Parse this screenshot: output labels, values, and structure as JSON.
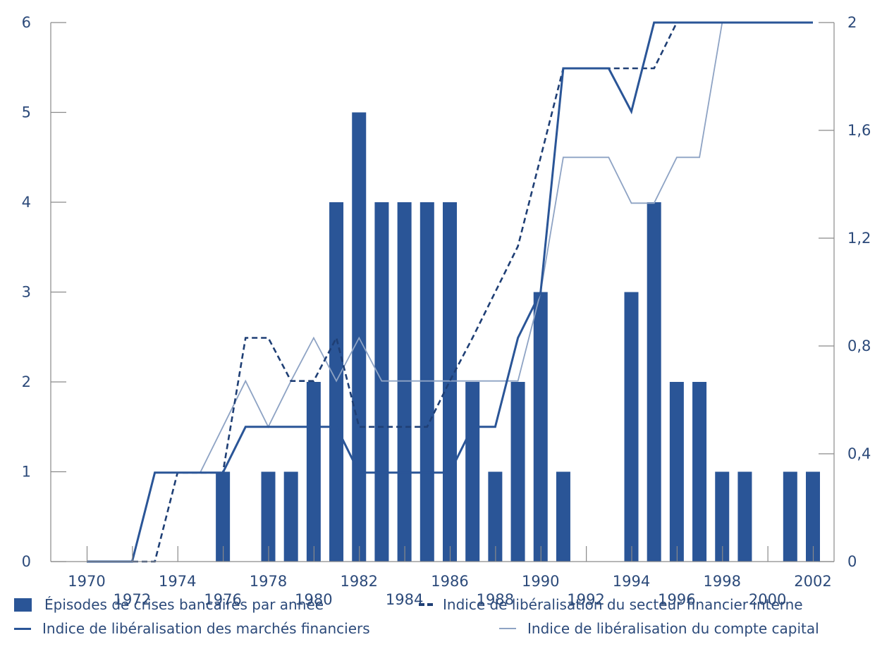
{
  "chart_data": {
    "type": "bar",
    "x": [
      1970,
      1971,
      1972,
      1973,
      1974,
      1975,
      1976,
      1977,
      1978,
      1979,
      1980,
      1981,
      1982,
      1983,
      1984,
      1985,
      1986,
      1987,
      1988,
      1989,
      1990,
      1991,
      1992,
      1993,
      1994,
      1995,
      1996,
      1997,
      1998,
      1999,
      2000,
      2001,
      2002
    ],
    "x_tick_labels": [
      "1970",
      "1972",
      "1974",
      "1976",
      "1978",
      "1980",
      "1982",
      "1984",
      "1986",
      "1988",
      "1990",
      "1992",
      "1994",
      "1996",
      "1998",
      "2000",
      "2002"
    ],
    "ylim_left": [
      0,
      6
    ],
    "yticks_left": [
      "0",
      "1",
      "2",
      "3",
      "4",
      "5",
      "6"
    ],
    "ylim_right": [
      0,
      2
    ],
    "yticks_right": [
      "0",
      "0,4",
      "0,8",
      "1,2",
      "1,6",
      "2"
    ],
    "bars": {
      "name": "Épisodes de crises bancaires par année",
      "color": "#2a5597",
      "axis": "left",
      "values": [
        0,
        0,
        0,
        0,
        0,
        0,
        1,
        0,
        1,
        1,
        2,
        4,
        5,
        4,
        4,
        4,
        4,
        2,
        1,
        2,
        3,
        1,
        0,
        0,
        3,
        4,
        2,
        2,
        1,
        1,
        0,
        1,
        1
      ]
    },
    "series": [
      {
        "name": "Indice de libéralisation du secteur financier interne",
        "style": "dashed",
        "color": "#1f3f75",
        "axis": "right",
        "points": [
          [
            1970,
            0
          ],
          [
            1971,
            0
          ],
          [
            1972,
            0
          ],
          [
            1973,
            0
          ],
          [
            1974,
            0.33
          ],
          [
            1975,
            0.33
          ],
          [
            1976,
            0.33
          ],
          [
            1977,
            0.83
          ],
          [
            1978,
            0.83
          ],
          [
            1979,
            0.67
          ],
          [
            1980,
            0.67
          ],
          [
            1981,
            0.83
          ],
          [
            1982,
            0.5
          ],
          [
            1983,
            0.5
          ],
          [
            1984,
            0.5
          ],
          [
            1985,
            0.5
          ],
          [
            1986,
            0.67
          ],
          [
            1987,
            0.83
          ],
          [
            1988,
            1.0
          ],
          [
            1989,
            1.17
          ],
          [
            1990,
            1.5
          ],
          [
            1991,
            1.83
          ],
          [
            1992,
            1.83
          ],
          [
            1993,
            1.83
          ],
          [
            1994,
            1.83
          ],
          [
            1995,
            1.83
          ],
          [
            1996,
            2.0
          ],
          [
            1997,
            2.0
          ],
          [
            1998,
            2.0
          ],
          [
            1999,
            2.0
          ],
          [
            2000,
            2.0
          ],
          [
            2001,
            2.0
          ],
          [
            2002,
            2.0
          ]
        ]
      },
      {
        "name": "Indice de libéralisation des marchés financiers",
        "style": "solid",
        "color": "#2a5597",
        "axis": "right",
        "points": [
          [
            1970,
            0
          ],
          [
            1971,
            0
          ],
          [
            1972,
            0
          ],
          [
            1973,
            0.33
          ],
          [
            1974,
            0.33
          ],
          [
            1975,
            0.33
          ],
          [
            1976,
            0.33
          ],
          [
            1977,
            0.5
          ],
          [
            1978,
            0.5
          ],
          [
            1979,
            0.5
          ],
          [
            1980,
            0.5
          ],
          [
            1981,
            0.5
          ],
          [
            1982,
            0.33
          ],
          [
            1983,
            0.33
          ],
          [
            1984,
            0.33
          ],
          [
            1985,
            0.33
          ],
          [
            1986,
            0.33
          ],
          [
            1987,
            0.5
          ],
          [
            1988,
            0.5
          ],
          [
            1989,
            0.83
          ],
          [
            1990,
            1.0
          ],
          [
            1991,
            1.83
          ],
          [
            1992,
            1.83
          ],
          [
            1993,
            1.83
          ],
          [
            1994,
            1.67
          ],
          [
            1995,
            2.0
          ],
          [
            1996,
            2.0
          ],
          [
            1997,
            2.0
          ],
          [
            1998,
            2.0
          ],
          [
            1999,
            2.0
          ],
          [
            2000,
            2.0
          ],
          [
            2001,
            2.0
          ],
          [
            2002,
            2.0
          ]
        ]
      },
      {
        "name": "Indice de libéralisation du compte capital",
        "style": "thin",
        "color": "#8ea3c4",
        "axis": "right",
        "points": [
          [
            1970,
            0
          ],
          [
            1971,
            0
          ],
          [
            1972,
            0
          ],
          [
            1973,
            0.33
          ],
          [
            1974,
            0.33
          ],
          [
            1975,
            0.33
          ],
          [
            1976,
            0.5
          ],
          [
            1977,
            0.67
          ],
          [
            1978,
            0.5
          ],
          [
            1979,
            0.67
          ],
          [
            1980,
            0.83
          ],
          [
            1981,
            0.67
          ],
          [
            1982,
            0.83
          ],
          [
            1983,
            0.67
          ],
          [
            1984,
            0.67
          ],
          [
            1985,
            0.67
          ],
          [
            1986,
            0.67
          ],
          [
            1987,
            0.67
          ],
          [
            1988,
            0.67
          ],
          [
            1989,
            0.67
          ],
          [
            1990,
            1.0
          ],
          [
            1991,
            1.5
          ],
          [
            1992,
            1.5
          ],
          [
            1993,
            1.5
          ],
          [
            1994,
            1.33
          ],
          [
            1995,
            1.33
          ],
          [
            1996,
            1.5
          ],
          [
            1997,
            1.5
          ],
          [
            1998,
            2.0
          ],
          [
            1999,
            2.0
          ],
          [
            2000,
            2.0
          ],
          [
            2001,
            2.0
          ],
          [
            2002,
            2.0
          ]
        ]
      }
    ],
    "grid": false,
    "legend_position": "bottom"
  },
  "legend": {
    "bars_label": "Épisodes de crises bancaires par année",
    "dashed_label": "Indice de libéralisation du secteur financier interne",
    "solid_label": "Indice de libéralisation des marchés financiers",
    "thin_label": "Indice de libéralisation du compte capital"
  }
}
